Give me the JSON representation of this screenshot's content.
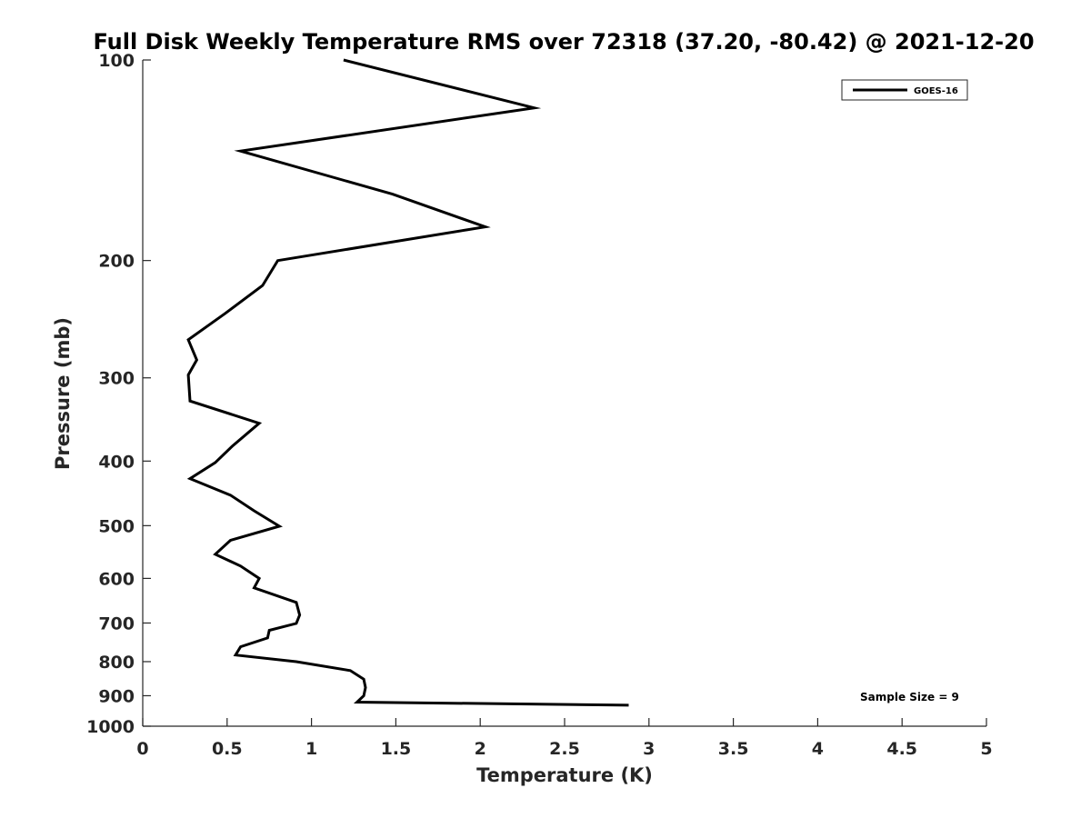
{
  "chart_data": {
    "type": "line",
    "title": "Full Disk Weekly Temperature RMS over 72318 (37.20, -80.42) @ 2021-12-20",
    "xlabel": "Temperature (K)",
    "ylabel": "Pressure (mb)",
    "xlim": [
      0,
      5
    ],
    "ylim": [
      100,
      1000
    ],
    "yscale": "log",
    "y_reversed": true,
    "grid": false,
    "legend_position": "top-right",
    "xticks": [
      0,
      0.5,
      1,
      1.5,
      2,
      2.5,
      3,
      3.5,
      4,
      4.5,
      5
    ],
    "xtick_labels": [
      "0",
      "0.5",
      "1",
      "1.5",
      "2",
      "2.5",
      "3",
      "3.5",
      "4",
      "4.5",
      "5"
    ],
    "yticks": [
      100,
      200,
      300,
      400,
      500,
      600,
      700,
      800,
      900,
      1000
    ],
    "ytick_labels": [
      "100",
      "200",
      "300",
      "400",
      "500",
      "600",
      "700",
      "800",
      "900",
      "1000"
    ],
    "annotation": "Sample Size = 9",
    "series": [
      {
        "name": "GOES-16",
        "color": "#000000",
        "points": [
          [
            1.19,
            100
          ],
          [
            2.32,
            118
          ],
          [
            0.58,
            137
          ],
          [
            1.48,
            159
          ],
          [
            2.03,
            178
          ],
          [
            0.8,
            200
          ],
          [
            0.71,
            218
          ],
          [
            0.49,
            240
          ],
          [
            0.27,
            263
          ],
          [
            0.32,
            282
          ],
          [
            0.27,
            297
          ],
          [
            0.28,
            325
          ],
          [
            0.69,
            351
          ],
          [
            0.53,
            380
          ],
          [
            0.43,
            402
          ],
          [
            0.28,
            425
          ],
          [
            0.52,
            450
          ],
          [
            0.66,
            475
          ],
          [
            0.81,
            501
          ],
          [
            0.52,
            526
          ],
          [
            0.43,
            552
          ],
          [
            0.58,
            575
          ],
          [
            0.69,
            600
          ],
          [
            0.66,
            620
          ],
          [
            0.91,
            652
          ],
          [
            0.93,
            681
          ],
          [
            0.91,
            701
          ],
          [
            0.75,
            718
          ],
          [
            0.74,
            737
          ],
          [
            0.58,
            760
          ],
          [
            0.55,
            782
          ],
          [
            0.91,
            800
          ],
          [
            1.23,
            825
          ],
          [
            1.31,
            850
          ],
          [
            1.32,
            875
          ],
          [
            1.31,
            900
          ],
          [
            1.27,
            920
          ],
          [
            2.88,
            930
          ]
        ]
      }
    ]
  }
}
